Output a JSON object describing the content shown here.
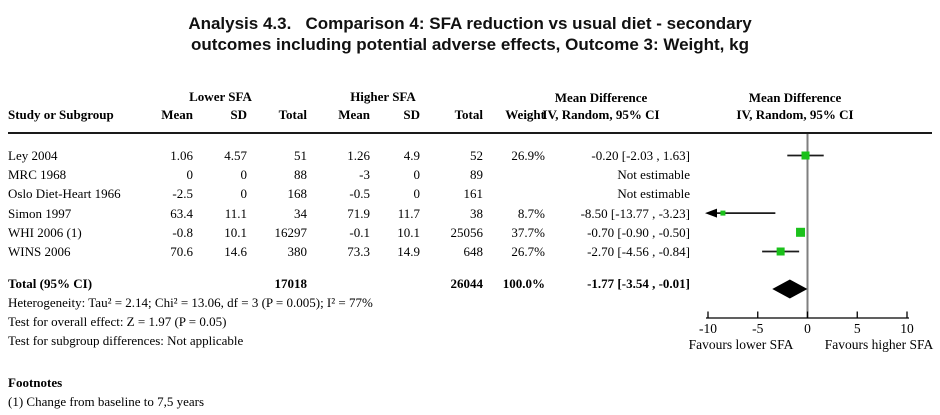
{
  "title": {
    "line1": "Analysis 4.3.   Comparison 4: SFA reduction vs usual diet - secondary",
    "line2": "outcomes including potential adverse effects, Outcome 3: Weight, kg"
  },
  "table": {
    "group1_header": "Lower SFA",
    "group2_header": "Higher SFA",
    "col_study": "Study or Subgroup",
    "col_mean": "Mean",
    "col_sd": "SD",
    "col_total": "Total",
    "col_weight": "Weight",
    "md_header": "Mean Difference",
    "md_subheader": "IV, Random, 95% CI",
    "rows": [
      {
        "study": "Ley 2004",
        "m1": "1.06",
        "sd1": "4.57",
        "t1": "51",
        "m2": "1.26",
        "sd2": "4.9",
        "t2": "52",
        "w": "26.9%",
        "ci": "-0.20 [-2.03 , 1.63]"
      },
      {
        "study": "MRC 1968",
        "m1": "0",
        "sd1": "0",
        "t1": "88",
        "m2": "-3",
        "sd2": "0",
        "t2": "89",
        "w": "",
        "ci": "Not estimable"
      },
      {
        "study": "Oslo Diet-Heart 1966",
        "m1": "-2.5",
        "sd1": "0",
        "t1": "168",
        "m2": "-0.5",
        "sd2": "0",
        "t2": "161",
        "w": "",
        "ci": "Not estimable"
      },
      {
        "study": "Simon 1997",
        "m1": "63.4",
        "sd1": "11.1",
        "t1": "34",
        "m2": "71.9",
        "sd2": "11.7",
        "t2": "38",
        "w": "8.7%",
        "ci": "-8.50 [-13.77 , -3.23]"
      },
      {
        "study": "WHI 2006 (1)",
        "m1": "-0.8",
        "sd1": "10.1",
        "t1": "16297",
        "m2": "-0.1",
        "sd2": "10.1",
        "t2": "25056",
        "w": "37.7%",
        "ci": "-0.70 [-0.90 , -0.50]"
      },
      {
        "study": "WINS 2006",
        "m1": "70.6",
        "sd1": "14.6",
        "t1": "380",
        "m2": "73.3",
        "sd2": "14.9",
        "t2": "648",
        "w": "26.7%",
        "ci": "-2.70 [-4.56 , -0.84]"
      }
    ],
    "total_row": {
      "label": "Total (95% CI)",
      "t1": "17018",
      "t2": "26044",
      "w": "100.0%",
      "ci": "-1.77 [-3.54 , -0.01]"
    }
  },
  "stats": {
    "heterogeneity": "Heterogeneity: Tau² = 2.14; Chi² = 13.06, df = 3 (P = 0.005); I² = 77%",
    "overall": "Test for overall effect: Z = 1.97 (P = 0.05)",
    "subgroup": "Test for subgroup differences: Not applicable"
  },
  "footnotes": {
    "header": "Footnotes",
    "item1": "(1) Change from baseline to 7,5 years"
  },
  "chart_data": {
    "type": "forest",
    "effect_measure": "Mean Difference",
    "method": "IV, Random, 95% CI",
    "xlim": [
      -10,
      10
    ],
    "ticks": [
      -10,
      -5,
      0,
      5,
      10
    ],
    "zero_line": 0,
    "favours_left": "Favours lower SFA",
    "favours_right": "Favours higher SFA",
    "marker_color": "#1bc11b",
    "studies": [
      {
        "name": "Ley 2004",
        "estimable": true,
        "md": -0.2,
        "ci_low": -2.03,
        "ci_high": 1.63,
        "weight": 26.9
      },
      {
        "name": "MRC 1968",
        "estimable": false
      },
      {
        "name": "Oslo Diet-Heart 1966",
        "estimable": false
      },
      {
        "name": "Simon 1997",
        "estimable": true,
        "md": -8.5,
        "ci_low": -13.77,
        "ci_high": -3.23,
        "weight": 8.7
      },
      {
        "name": "WHI 2006 (1)",
        "estimable": true,
        "md": -0.7,
        "ci_low": -0.9,
        "ci_high": -0.5,
        "weight": 37.7
      },
      {
        "name": "WINS 2006",
        "estimable": true,
        "md": -2.7,
        "ci_low": -4.56,
        "ci_high": -0.84,
        "weight": 26.7
      }
    ],
    "total": {
      "md": -1.77,
      "ci_low": -3.54,
      "ci_high": -0.01,
      "weight": 100.0
    }
  }
}
